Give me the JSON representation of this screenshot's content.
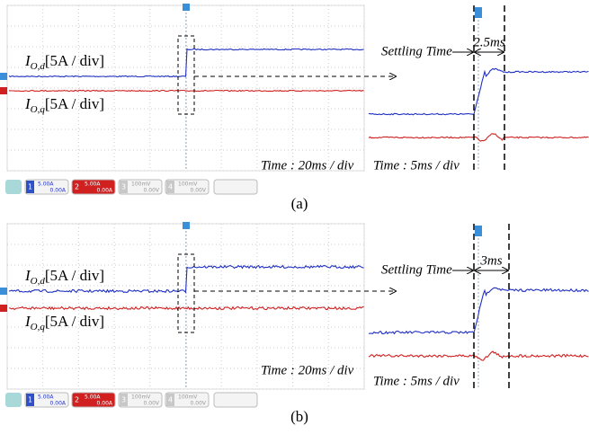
{
  "panels": [
    {
      "caption": "(a)",
      "id_label": {
        "main": "I",
        "sub": "O,d",
        "scale": "[5A / div]"
      },
      "iq_label": {
        "main": "I",
        "sub": "O,q",
        "scale": "[5A / div]"
      },
      "main_time": "Time : 20ms / div",
      "zoom_time": "Time : 5ms / div",
      "settling_label": "Settling Time",
      "settling_value": "2.5ms",
      "channels": [
        {
          "number": "1",
          "scale": "5.00A",
          "offset": "0.00A"
        },
        {
          "number": "2",
          "scale": "5.00A",
          "offset": "0.00A"
        },
        {
          "number": "3",
          "scale": "100mV",
          "offset": "0.00V"
        },
        {
          "number": "4",
          "scale": "100mV",
          "offset": "0.00V"
        }
      ]
    },
    {
      "caption": "(b)",
      "id_label": {
        "main": "I",
        "sub": "O,d",
        "scale": "[5A / div]"
      },
      "iq_label": {
        "main": "I",
        "sub": "O,q",
        "scale": "[5A / div]"
      },
      "main_time": "Time : 20ms / div",
      "zoom_time": "Time : 5ms / div",
      "settling_label": "Settling Time",
      "settling_value": "3ms",
      "channels": [
        {
          "number": "1",
          "scale": "5.00A",
          "offset": "0.00A"
        },
        {
          "number": "2",
          "scale": "5.00A",
          "offset": "0.00A"
        },
        {
          "number": "3",
          "scale": "100mV",
          "offset": "0.00V"
        },
        {
          "number": "4",
          "scale": "100mV",
          "offset": "0.00V"
        }
      ]
    }
  ]
}
